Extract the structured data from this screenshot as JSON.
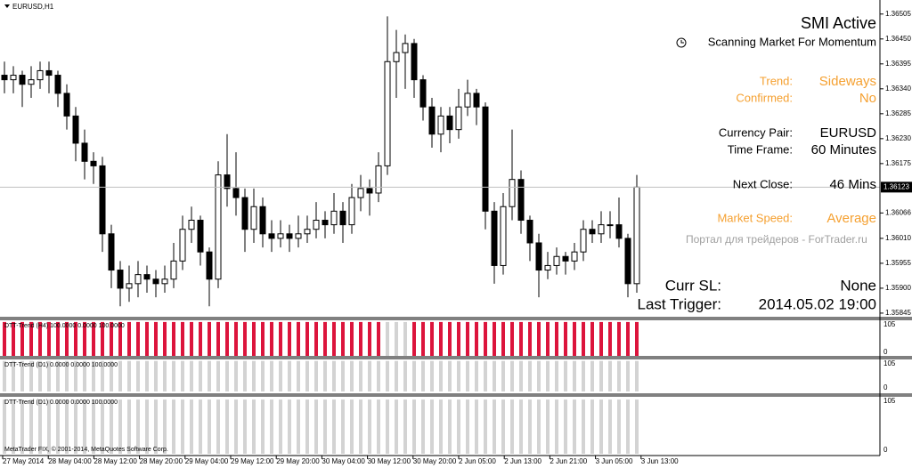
{
  "window_title": "EURUSD,H1",
  "chart_data": [
    {
      "type": "candlestick",
      "open": [
        1.3637,
        1.3636,
        1.3637,
        1.3635,
        1.3636,
        1.3638,
        1.3637,
        1.3633,
        1.3628,
        1.3622,
        1.3618,
        1.3617,
        1.3602,
        1.3594,
        1.359,
        1.3591,
        1.3593,
        1.3592,
        1.3591,
        1.3592,
        1.3596,
        1.3603,
        1.3605,
        1.3598,
        1.3592,
        1.3615,
        1.3612,
        1.361,
        1.3603,
        1.3608,
        1.3602,
        1.3601,
        1.3602,
        1.3601,
        1.3602,
        1.3603,
        1.3605,
        1.3604,
        1.3607,
        1.3604,
        1.361,
        1.3612,
        1.3611,
        1.3617,
        1.364,
        1.3642,
        1.3644,
        1.3636,
        1.363,
        1.3624,
        1.3628,
        1.3625,
        1.363,
        1.3633,
        1.363,
        1.3607,
        1.3595,
        1.3608,
        1.3614,
        1.3605,
        1.36,
        1.3594,
        1.3595,
        1.3597,
        1.3596,
        1.3598,
        1.3603,
        1.3602,
        1.3604,
        1.3604,
        1.3601,
        1.3591
      ],
      "high": [
        1.364,
        1.3639,
        1.3638,
        1.3639,
        1.364,
        1.364,
        1.3638,
        1.3635,
        1.363,
        1.3625,
        1.362,
        1.3619,
        1.3604,
        1.3596,
        1.3595,
        1.3596,
        1.3595,
        1.3594,
        1.3595,
        1.36,
        1.3606,
        1.3608,
        1.3606,
        1.3599,
        1.3618,
        1.3624,
        1.362,
        1.3612,
        1.3612,
        1.361,
        1.3605,
        1.3605,
        1.3604,
        1.3606,
        1.3606,
        1.3609,
        1.3607,
        1.3611,
        1.3609,
        1.3613,
        1.3615,
        1.3614,
        1.362,
        1.365,
        1.3647,
        1.3646,
        1.3645,
        1.3637,
        1.3632,
        1.363,
        1.363,
        1.3634,
        1.3636,
        1.3634,
        1.3631,
        1.3609,
        1.3611,
        1.3625,
        1.3616,
        1.3606,
        1.3602,
        1.3598,
        1.3599,
        1.3598,
        1.36,
        1.3605,
        1.3605,
        1.3607,
        1.3607,
        1.361,
        1.3602,
        1.3615
      ],
      "low": [
        1.3633,
        1.3633,
        1.363,
        1.3632,
        1.3634,
        1.3633,
        1.363,
        1.3625,
        1.3618,
        1.3614,
        1.3613,
        1.3598,
        1.359,
        1.3586,
        1.3587,
        1.3588,
        1.3589,
        1.3588,
        1.3589,
        1.359,
        1.3594,
        1.36,
        1.3595,
        1.3586,
        1.359,
        1.3608,
        1.3606,
        1.3598,
        1.36,
        1.3599,
        1.3598,
        1.3599,
        1.3598,
        1.3599,
        1.36,
        1.3601,
        1.3601,
        1.3602,
        1.36,
        1.3602,
        1.3607,
        1.3606,
        1.3609,
        1.3615,
        1.3632,
        1.3634,
        1.3632,
        1.3627,
        1.3621,
        1.362,
        1.3622,
        1.3623,
        1.3628,
        1.3626,
        1.3603,
        1.3591,
        1.3593,
        1.3605,
        1.3602,
        1.3596,
        1.3588,
        1.3592,
        1.3593,
        1.3593,
        1.3594,
        1.3596,
        1.36,
        1.36,
        1.3601,
        1.3599,
        1.3588,
        1.3589
      ],
      "close": [
        1.3636,
        1.3637,
        1.3635,
        1.3636,
        1.3638,
        1.3637,
        1.3633,
        1.3628,
        1.3622,
        1.3618,
        1.3617,
        1.3602,
        1.3594,
        1.359,
        1.3591,
        1.3593,
        1.3592,
        1.3591,
        1.3592,
        1.3596,
        1.3603,
        1.3605,
        1.3598,
        1.3592,
        1.3615,
        1.3612,
        1.361,
        1.3603,
        1.3608,
        1.3602,
        1.3601,
        1.3602,
        1.3601,
        1.3602,
        1.3603,
        1.3605,
        1.3604,
        1.3607,
        1.3604,
        1.361,
        1.3612,
        1.3611,
        1.3617,
        1.364,
        1.3642,
        1.3644,
        1.3636,
        1.363,
        1.3624,
        1.3628,
        1.3625,
        1.363,
        1.3633,
        1.363,
        1.3607,
        1.3595,
        1.3608,
        1.3614,
        1.3605,
        1.36,
        1.3594,
        1.3595,
        1.3597,
        1.3596,
        1.3598,
        1.3603,
        1.3602,
        1.3604,
        1.3604,
        1.3601,
        1.3591,
        1.36123
      ],
      "current": 1.36123,
      "ylim": [
        1.35837,
        1.36536
      ],
      "yticks": [
        1.36505,
        {
          "value": 1.3645,
          "label": "1.36450"
        },
        1.36395,
        {
          "value": 1.3634,
          "label": "1.36340"
        },
        1.36285,
        {
          "value": 1.3623,
          "label": "1.36230"
        },
        1.36175,
        1.36066,
        {
          "value": 1.3601,
          "label": "1.36010"
        },
        1.35955,
        {
          "value": 1.359,
          "label": "1.35900"
        },
        1.35845
      ],
      "xtick_labels": [
        "27 May 2014",
        "28 May 04:00",
        "28 May 12:00",
        "28 May 20:00",
        "29 May 04:00",
        "29 May 12:00",
        "29 May 20:00",
        "30 May 04:00",
        "30 May 12:00",
        "30 May 20:00",
        "2 Jun 05:00",
        "2 Jun 13:00",
        "2 Jun 21:00",
        "3 Jun 05:00",
        "3 Jun 13:00"
      ]
    },
    {
      "type": "histogram",
      "label": "DTT-Trend (H4) 100.0000 0.0000 100.0000",
      "ylim": [
        0,
        105
      ],
      "yticks": [
        105,
        0
      ],
      "series": [
        {
          "color": "#dc143c",
          "values": [
            100,
            100,
            100,
            100,
            100,
            100,
            100,
            100,
            100,
            100,
            100,
            100,
            100,
            100,
            100,
            100,
            100,
            100,
            100,
            100,
            100,
            100,
            100,
            100,
            100,
            100,
            100,
            100,
            100,
            100,
            100,
            100,
            100,
            100,
            100,
            100,
            100,
            100,
            100,
            100,
            100,
            100,
            100,
            0,
            0,
            0,
            100,
            100,
            100,
            100,
            100,
            100,
            100,
            100,
            100,
            100,
            100,
            100,
            100,
            100,
            100,
            100,
            100,
            100,
            100,
            100,
            100,
            100,
            100,
            100,
            100,
            100
          ]
        },
        {
          "color": "#d3d3d3",
          "values": [
            0,
            0,
            0,
            0,
            0,
            0,
            0,
            0,
            0,
            0,
            0,
            0,
            0,
            0,
            0,
            0,
            0,
            0,
            0,
            0,
            0,
            0,
            0,
            0,
            0,
            0,
            0,
            0,
            0,
            0,
            0,
            0,
            0,
            0,
            0,
            0,
            0,
            0,
            0,
            0,
            0,
            0,
            0,
            100,
            100,
            100,
            0,
            0,
            0,
            0,
            0,
            0,
            0,
            0,
            0,
            0,
            0,
            0,
            0,
            0,
            0,
            0,
            0,
            0,
            0,
            0,
            0,
            0,
            0,
            0,
            0,
            0
          ]
        }
      ]
    },
    {
      "type": "histogram",
      "label": "DTT-Trend (D1) 0.0000 0.0000 100.0000",
      "ylim": [
        0,
        105
      ],
      "yticks": [
        105,
        0
      ],
      "series": [
        {
          "color": "#d3d3d3",
          "values": [
            100,
            100,
            100,
            100,
            100,
            100,
            100,
            100,
            100,
            100,
            100,
            100,
            100,
            100,
            100,
            100,
            100,
            100,
            100,
            100,
            100,
            100,
            100,
            100,
            100,
            100,
            100,
            100,
            100,
            100,
            100,
            100,
            100,
            100,
            100,
            100,
            100,
            100,
            100,
            100,
            100,
            100,
            100,
            100,
            100,
            100,
            100,
            100,
            100,
            100,
            100,
            100,
            100,
            100,
            100,
            100,
            100,
            100,
            100,
            100,
            100,
            100,
            100,
            100,
            100,
            100,
            100,
            100,
            100,
            100,
            100,
            100
          ]
        }
      ]
    },
    {
      "type": "histogram",
      "label": "DTT-Trend (D1) 0.0000 0.0000 100.0000",
      "ylim": [
        0,
        105
      ],
      "yticks": [
        105,
        0
      ],
      "series": [
        {
          "color": "#d3d3d3",
          "values": [
            100,
            100,
            100,
            100,
            100,
            100,
            100,
            100,
            100,
            100,
            100,
            100,
            100,
            100,
            100,
            100,
            100,
            100,
            100,
            100,
            100,
            100,
            100,
            100,
            100,
            100,
            100,
            100,
            100,
            100,
            100,
            100,
            100,
            100,
            100,
            100,
            100,
            100,
            100,
            100,
            100,
            100,
            100,
            100,
            100,
            100,
            100,
            100,
            100,
            100,
            100,
            100,
            100,
            100,
            100,
            100,
            100,
            100,
            100,
            100,
            100,
            100,
            100,
            100,
            100,
            100,
            100,
            100,
            100,
            100,
            100,
            100
          ]
        }
      ]
    }
  ],
  "overlay": {
    "title": "SMI Active",
    "subtitle": "Scanning Market For Momentum",
    "rows": [
      {
        "label": "Trend:",
        "value": "Sideways",
        "color": "#f5a030",
        "y": 92
      },
      {
        "label": "Confirmed:",
        "value": "No",
        "color": "#f5a030",
        "y": 111
      },
      {
        "label": "Currency Pair:",
        "value": "EURUSD",
        "color": "#000000",
        "y": 150
      },
      {
        "label": "Time Frame:",
        "value": "60 Minutes",
        "color": "#000000",
        "y": 169
      },
      {
        "label": "Next Close:",
        "value": "46 Mins",
        "color": "#000000",
        "y": 208
      },
      {
        "label": "Market Speed:",
        "value": "Average",
        "color": "#f5a030",
        "y": 246
      }
    ],
    "watermark": "Портал для трейдеров - ForTrader.ru",
    "big_rows": [
      {
        "label": "Curr SL:",
        "value": "None"
      },
      {
        "label": "Last Trigger:",
        "value": "2014.05.02 19:00"
      }
    ]
  },
  "copyright": "MetaTrader FIX, © 2001-2014, MetaQuotes Software Corp."
}
